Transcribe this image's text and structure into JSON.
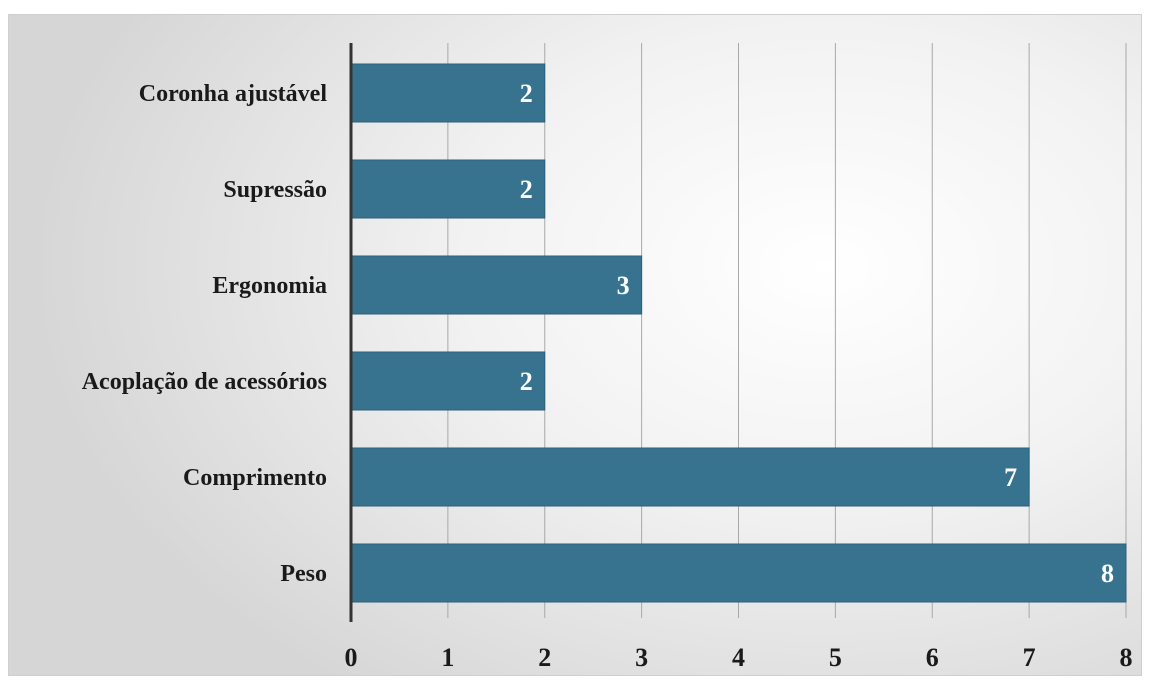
{
  "chart_data": {
    "type": "bar",
    "orientation": "horizontal",
    "categories": [
      "Coronha ajustável",
      "Supressão",
      "Ergonomia",
      "Acoplação de acessórios",
      "Comprimento",
      "Peso"
    ],
    "values": [
      2,
      2,
      3,
      2,
      7,
      8
    ],
    "x_ticks": [
      "0",
      "1",
      "2",
      "3",
      "4",
      "5",
      "6",
      "7",
      "8"
    ],
    "xlim": [
      0,
      8
    ],
    "title": "",
    "xlabel": "",
    "ylabel": "",
    "grid": "vertical",
    "legend": "none",
    "data_labels": "inside-end",
    "colors": {
      "bar": "#37738f",
      "bar_edge": "#2c5f78",
      "grid": "#a8a8a8",
      "axis": "#333333",
      "label_text": "#1a1a1a",
      "data_label_text": "#ffffff"
    }
  }
}
